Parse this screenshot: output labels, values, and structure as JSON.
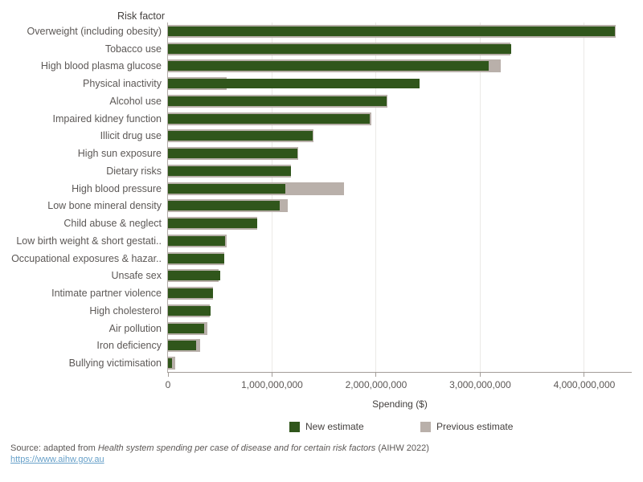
{
  "colors": {
    "new_estimate": "#30561b",
    "previous_estimate": "#b9b0aa",
    "gridline": "#ebe9e6",
    "axis_line": "#a39d99",
    "link_blue": "#66a0c9",
    "text_gray": "#5c5856"
  },
  "chart_data": {
    "type": "bar",
    "orientation": "horizontal",
    "title": "",
    "ylabel": "Risk factor",
    "xlabel": "Spending ($)",
    "xlim": [
      0,
      4456000000
    ],
    "x_ticks": [
      0,
      1000000000,
      2000000000,
      3000000000,
      4000000000
    ],
    "x_tick_labels": [
      "0",
      "1,000,000,000",
      "2,000,000,000",
      "3,000,000,000",
      "4,000,000,000"
    ],
    "grid": "vertical",
    "legend_position": "bottom",
    "categories": [
      "Overweight (including obesity)",
      "Tobacco use",
      "High blood plasma glucose",
      "Physical inactivity",
      "Alcohol use",
      "Impaired kidney function",
      "Illicit drug use",
      "High sun exposure",
      "Dietary risks",
      "High blood pressure",
      "Low bone mineral density",
      "Child abuse & neglect",
      "Low birth weight & short gestati..",
      "Occupational exposures & hazar..",
      "Unsafe sex",
      "Intimate partner violence",
      "High cholesterol",
      "Air pollution",
      "Iron deficiency",
      "Bullying victimisation"
    ],
    "series": [
      {
        "name": "New estimate",
        "color": "#30561b",
        "values": [
          4290000000,
          3300000000,
          3080000000,
          2420000000,
          2100000000,
          1940000000,
          1390000000,
          1240000000,
          1180000000,
          1130000000,
          1070000000,
          860000000,
          550000000,
          540000000,
          500000000,
          430000000,
          410000000,
          350000000,
          270000000,
          40000000
        ]
      },
      {
        "name": "Previous estimate",
        "color": "#b9b0aa",
        "values": [
          4300000000,
          3290000000,
          3200000000,
          560000000,
          2110000000,
          1950000000,
          1400000000,
          1250000000,
          1180000000,
          1690000000,
          1150000000,
          860000000,
          560000000,
          540000000,
          490000000,
          430000000,
          400000000,
          380000000,
          310000000,
          70000000
        ]
      }
    ]
  },
  "source": {
    "prefix": "Source: adapted from ",
    "italic": "Health system spending per case of disease and for certain risk factors",
    "suffix": " (AIHW 2022)",
    "link": "https://www.aihw.gov.au"
  }
}
